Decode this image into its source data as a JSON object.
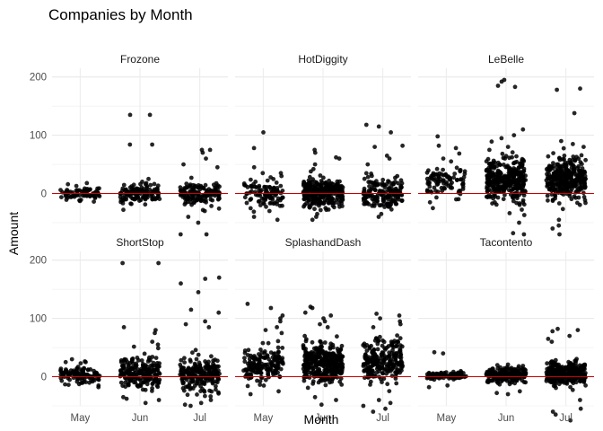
{
  "chart_data": {
    "type": "scatter",
    "title": "Companies by Month",
    "xlabel": "Month",
    "ylabel": "Amount",
    "categories": [
      "May",
      "Jun",
      "Jul"
    ],
    "ylim": [
      -50,
      215
    ],
    "yticks": [
      0,
      100,
      200
    ],
    "grid": true,
    "reference_line": {
      "y": 0,
      "color": "#cc0000"
    },
    "point_color": "#000000",
    "panels": [
      {
        "name": "Frozone",
        "groups": [
          {
            "month": "May",
            "n": 70,
            "center": 0,
            "spread": 6,
            "extremes": [
              18,
              -14,
              16,
              13
            ]
          },
          {
            "month": "Jun",
            "n": 130,
            "center": 0,
            "spread": 8,
            "extremes": [
              135,
              135,
              84,
              84,
              25,
              18,
              -28,
              -18
            ]
          },
          {
            "month": "Jul",
            "n": 140,
            "center": 0,
            "spread": 10,
            "extremes": [
              75,
              75,
              70,
              60,
              50,
              45,
              -40,
              -50,
              -70,
              -70,
              -30
            ]
          }
        ]
      },
      {
        "name": "HotDiggity",
        "groups": [
          {
            "month": "May",
            "n": 100,
            "center": 0,
            "spread": 12,
            "extremes": [
              105,
              78,
              45,
              35,
              35,
              30,
              -40,
              -45,
              -30,
              -20
            ]
          },
          {
            "month": "Jun",
            "n": 280,
            "center": 0,
            "spread": 12,
            "extremes": [
              75,
              70,
              62,
              60,
              50,
              42,
              38,
              -45,
              -40,
              -35
            ]
          },
          {
            "month": "Jul",
            "n": 170,
            "center": 0,
            "spread": 14,
            "extremes": [
              118,
              115,
              105,
              82,
              80,
              65,
              60,
              50,
              -40,
              -35
            ]
          }
        ]
      },
      {
        "name": "LeBelle",
        "groups": [
          {
            "month": "May",
            "n": 90,
            "center": 22,
            "spread": 12,
            "extremes": [
              98,
              82,
              78,
              60,
              55,
              -25,
              -15,
              -10
            ]
          },
          {
            "month": "Jun",
            "n": 330,
            "center": 22,
            "spread": 18,
            "extremes": [
              195,
              192,
              185,
              183,
              110,
              100,
              95,
              80,
              75,
              -70,
              -68,
              -50
            ]
          },
          {
            "month": "Jul",
            "n": 330,
            "center": 25,
            "spread": 18,
            "extremes": [
              180,
              178,
              138,
              90,
              85,
              80,
              -55,
              -60,
              -70,
              -45
            ]
          }
        ]
      },
      {
        "name": "ShortStop",
        "groups": [
          {
            "month": "May",
            "n": 110,
            "center": 3,
            "spread": 8,
            "extremes": [
              30,
              25,
              25,
              -18,
              -15
            ]
          },
          {
            "month": "Jun",
            "n": 210,
            "center": 5,
            "spread": 14,
            "extremes": [
              195,
              195,
              85,
              80,
              75,
              60,
              55,
              -45,
              -40,
              -35
            ]
          },
          {
            "month": "Jul",
            "n": 220,
            "center": 3,
            "spread": 14,
            "extremes": [
              170,
              168,
              160,
              145,
              115,
              110,
              95,
              90,
              85,
              -50,
              -45,
              -40
            ]
          }
        ]
      },
      {
        "name": "SplashandDash",
        "groups": [
          {
            "month": "May",
            "n": 170,
            "center": 20,
            "spread": 16,
            "extremes": [
              125,
              118,
              105,
              100,
              95,
              85,
              80,
              75,
              -30,
              -25
            ]
          },
          {
            "month": "Jun",
            "n": 380,
            "center": 22,
            "spread": 18,
            "extremes": [
              120,
              118,
              110,
              105,
              100,
              95,
              90,
              85,
              -48,
              -40,
              -35
            ]
          },
          {
            "month": "Jul",
            "n": 230,
            "center": 28,
            "spread": 18,
            "extremes": [
              108,
              105,
              100,
              95,
              90,
              85,
              -60,
              -55,
              -50,
              -45,
              -40
            ]
          }
        ]
      },
      {
        "name": "Tacontento",
        "groups": [
          {
            "month": "May",
            "n": 100,
            "center": 2,
            "spread": 3,
            "extremes": [
              42,
              40,
              -18,
              -15
            ]
          },
          {
            "month": "Jun",
            "n": 230,
            "center": 2,
            "spread": 6,
            "extremes": [
              20,
              18,
              -30,
              -28,
              -25
            ]
          },
          {
            "month": "Jul",
            "n": 300,
            "center": 5,
            "spread": 10,
            "extremes": [
              82,
              80,
              78,
              70,
              65,
              60,
              -55,
              -60,
              -65,
              -75,
              -40
            ]
          }
        ]
      }
    ]
  }
}
